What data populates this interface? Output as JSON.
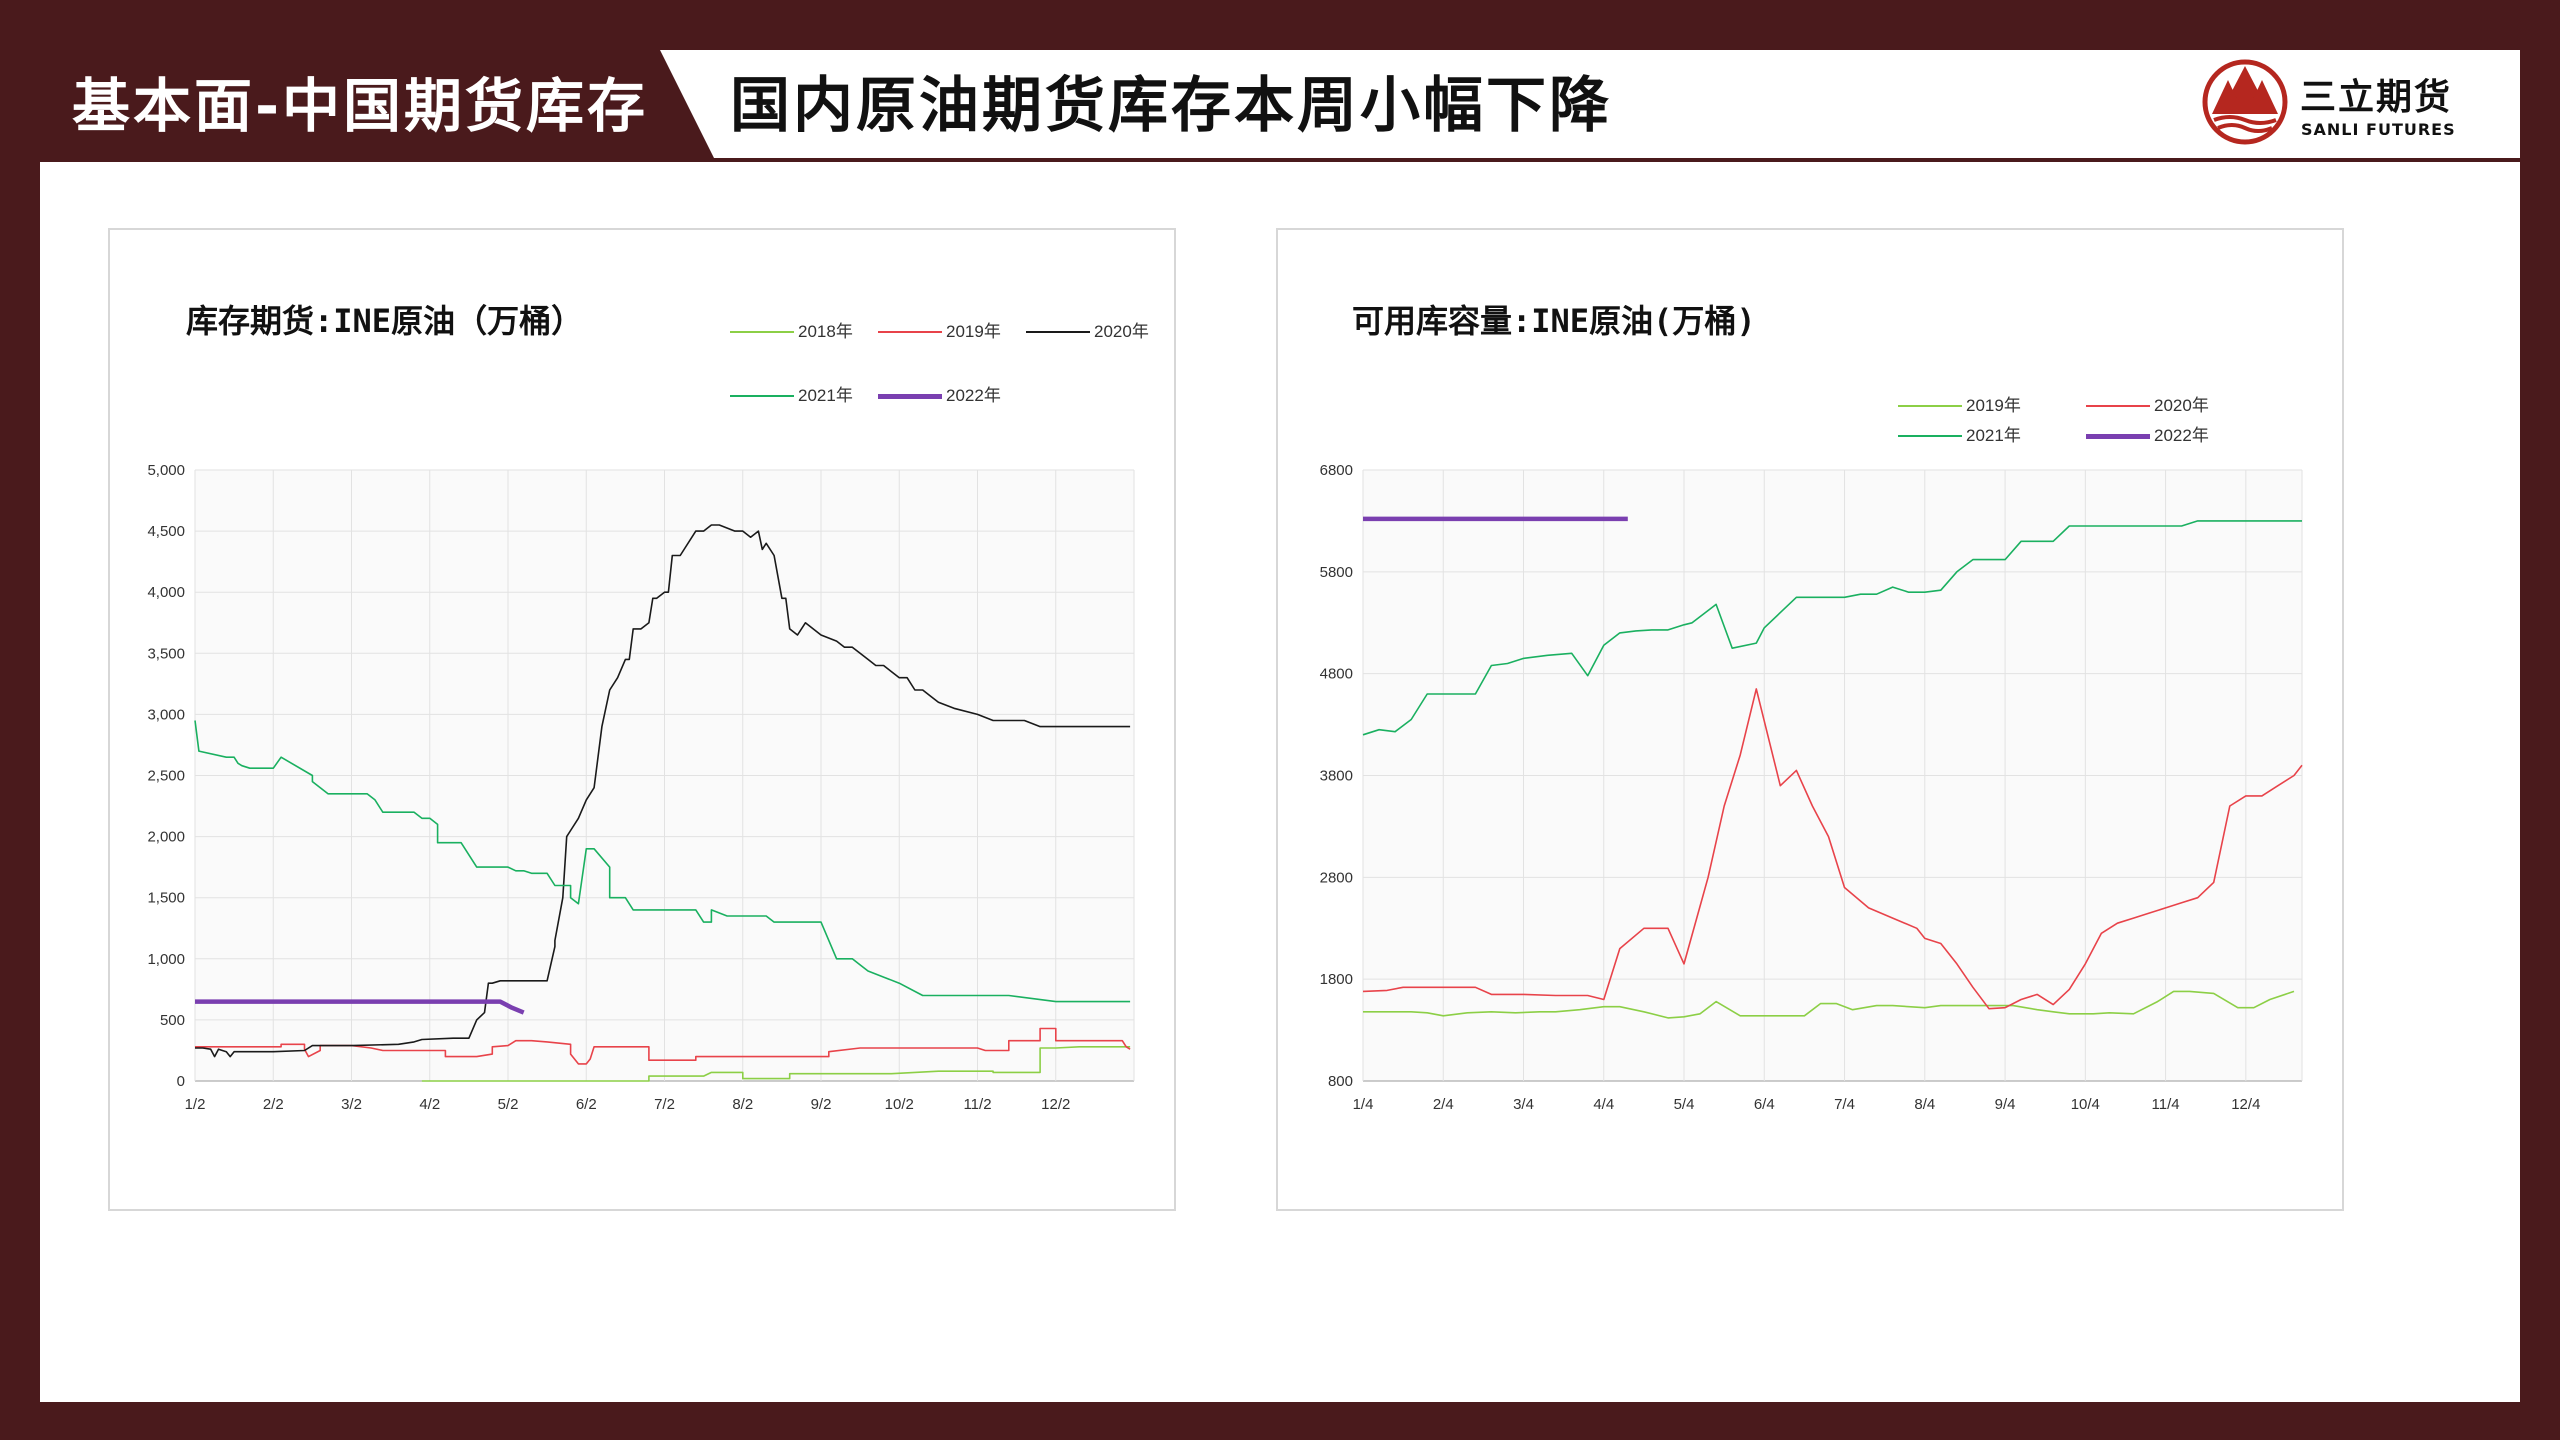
{
  "header": {
    "section_title": "基本面-中国期货库存",
    "page_title": "国内原油期货库存本周小幅下降",
    "logo_name": "三立期货",
    "logo_en": "SANLI FUTURES",
    "brand_color": "#4a1a1c",
    "logo_color": "#b5271f"
  },
  "chart_data": [
    {
      "type": "line",
      "title": "库存期货:INE原油（万桶）",
      "x_ticks": [
        "1/2",
        "2/2",
        "3/2",
        "4/2",
        "5/2",
        "6/2",
        "7/2",
        "8/2",
        "9/2",
        "10/2",
        "11/2",
        "12/2"
      ],
      "y_ticks": [
        "0",
        "500",
        "1,000",
        "1,500",
        "2,000",
        "2,500",
        "3,000",
        "3,500",
        "4,000",
        "4,500",
        "5,000"
      ],
      "ylim": [
        0,
        5000
      ],
      "x_unit": "month index (1/2 = 0)",
      "xlim": [
        0,
        12.0
      ],
      "grid": true,
      "legend_position": "top-right",
      "series": [
        {
          "name": "2018年",
          "color": "#8ccf46",
          "width": 1.6,
          "x": [
            2.9,
            3.4,
            5.8,
            5.8,
            6.5,
            6.6,
            7.0,
            7.0,
            7.6,
            7.6,
            8.1,
            8.9,
            9.5,
            10.2,
            10.2,
            10.8,
            10.8,
            11.0,
            11.3,
            11.95
          ],
          "y": [
            0,
            0,
            0,
            40,
            40,
            70,
            70,
            20,
            20,
            60,
            60,
            60,
            80,
            80,
            70,
            70,
            270,
            270,
            280,
            280
          ]
        },
        {
          "name": "2019年",
          "color": "#e8434a",
          "width": 1.6,
          "x": [
            0,
            0.6,
            0.75,
            1.1,
            1.1,
            1.4,
            1.4,
            1.45,
            1.6,
            1.6,
            2.0,
            2.25,
            2.4,
            3.2,
            3.2,
            3.6,
            3.8,
            3.8,
            4.0,
            4.1,
            4.3,
            4.5,
            4.8,
            4.8,
            4.9,
            5.0,
            5.05,
            5.1,
            5.8,
            5.8,
            6.4,
            6.4,
            8.1,
            8.1,
            8.5,
            9.3,
            9.3,
            10.0,
            10.1,
            10.4,
            10.4,
            10.8,
            10.8,
            11.0,
            11.0,
            11.85,
            11.9,
            11.95
          ],
          "y": [
            280,
            280,
            280,
            280,
            300,
            300,
            260,
            200,
            250,
            290,
            290,
            270,
            250,
            250,
            200,
            200,
            220,
            280,
            290,
            330,
            330,
            320,
            300,
            220,
            140,
            140,
            180,
            280,
            280,
            170,
            170,
            200,
            200,
            240,
            270,
            270,
            270,
            270,
            250,
            250,
            330,
            330,
            430,
            430,
            330,
            330,
            280,
            260
          ]
        },
        {
          "name": "2020年",
          "color": "#1a1a1a",
          "width": 1.6,
          "x": [
            0,
            0.1,
            0.2,
            0.25,
            0.3,
            0.4,
            0.45,
            0.5,
            1.0,
            1.4,
            1.5,
            2.0,
            2.6,
            2.8,
            2.9,
            3.3,
            3.5,
            3.6,
            3.7,
            3.75,
            3.8,
            3.9,
            4.5,
            4.6,
            4.6,
            4.7,
            4.75,
            4.8,
            4.9,
            5.0,
            5.05,
            5.1,
            5.2,
            5.3,
            5.4,
            5.5,
            5.55,
            5.6,
            5.7,
            5.8,
            5.85,
            5.9,
            6.0,
            6.05,
            6.1,
            6.2,
            6.4,
            6.5,
            6.6,
            6.7,
            6.9,
            7.0,
            7.1,
            7.2,
            7.25,
            7.3,
            7.4,
            7.5,
            7.55,
            7.6,
            7.7,
            7.8,
            8.0,
            8.2,
            8.3,
            8.4,
            8.5,
            8.6,
            8.7,
            8.8,
            8.9,
            9.0,
            9.1,
            9.2,
            9.3,
            9.4,
            9.5,
            9.7,
            10.0,
            10.2,
            10.4,
            10.6,
            10.8,
            11.0,
            11.2,
            11.4,
            11.6,
            11.7,
            11.8,
            11.95
          ],
          "y": [
            270,
            270,
            260,
            200,
            260,
            240,
            200,
            240,
            240,
            250,
            290,
            290,
            300,
            320,
            340,
            350,
            350,
            500,
            560,
            800,
            800,
            820,
            820,
            1100,
            1150,
            1500,
            2000,
            2050,
            2150,
            2300,
            2350,
            2400,
            2900,
            3200,
            3300,
            3450,
            3450,
            3700,
            3700,
            3750,
            3950,
            3950,
            4000,
            4000,
            4300,
            4300,
            4500,
            4500,
            4550,
            4550,
            4500,
            4500,
            4450,
            4500,
            4350,
            4400,
            4300,
            3950,
            3950,
            3700,
            3650,
            3750,
            3650,
            3600,
            3550,
            3550,
            3500,
            3450,
            3400,
            3400,
            3350,
            3300,
            3300,
            3200,
            3200,
            3150,
            3100,
            3050,
            3000,
            2950,
            2950,
            2950,
            2900,
            2900,
            2900,
            2900,
            2900,
            2900,
            2900,
            2900
          ]
        },
        {
          "name": "2021年",
          "color": "#1ab060",
          "width": 1.6,
          "x": [
            0,
            0.05,
            0.4,
            0.5,
            0.55,
            0.6,
            0.7,
            1.0,
            1.1,
            1.5,
            1.5,
            1.7,
            2.2,
            2.3,
            2.3,
            2.4,
            2.8,
            2.9,
            3.0,
            3.1,
            3.1,
            3.4,
            3.6,
            3.9,
            4.0,
            4.1,
            4.2,
            4.3,
            4.5,
            4.6,
            4.8,
            4.8,
            4.9,
            5.0,
            5.1,
            5.3,
            5.3,
            5.5,
            5.6,
            5.8,
            6.0,
            6.4,
            6.5,
            6.6,
            6.6,
            6.8,
            6.9,
            7.0,
            7.3,
            7.4,
            7.6,
            8.0,
            8.2,
            8.4,
            8.5,
            8.6,
            8.8,
            9.0,
            9.3,
            9.5,
            9.8,
            10.0,
            10.1,
            10.4,
            11.0,
            11.5,
            11.95
          ],
          "y": [
            2950,
            2700,
            2650,
            2650,
            2600,
            2580,
            2560,
            2560,
            2650,
            2500,
            2450,
            2350,
            2350,
            2300,
            2300,
            2200,
            2200,
            2150,
            2150,
            2100,
            1950,
            1950,
            1750,
            1750,
            1750,
            1720,
            1720,
            1700,
            1700,
            1600,
            1600,
            1500,
            1450,
            1900,
            1900,
            1750,
            1500,
            1500,
            1400,
            1400,
            1400,
            1400,
            1300,
            1300,
            1400,
            1350,
            1350,
            1350,
            1350,
            1300,
            1300,
            1300,
            1000,
            1000,
            950,
            900,
            850,
            800,
            700,
            700,
            700,
            700,
            700,
            700,
            650,
            650,
            650
          ]
        },
        {
          "name": "2022年",
          "color": "#7a3fb0",
          "width": 4.5,
          "x": [
            0,
            0.5,
            1.0,
            1.5,
            2.0,
            2.5,
            3.0,
            3.5,
            3.9,
            4.05,
            4.2
          ],
          "y": [
            650,
            650,
            650,
            650,
            650,
            650,
            650,
            650,
            650,
            600,
            560
          ]
        }
      ]
    },
    {
      "type": "line",
      "title": "可用库容量:INE原油(万桶)",
      "x_ticks": [
        "1/4",
        "2/4",
        "3/4",
        "4/4",
        "5/4",
        "6/4",
        "7/4",
        "8/4",
        "9/4",
        "10/4",
        "11/4",
        "12/4"
      ],
      "y_ticks": [
        "800",
        "1800",
        "2800",
        "3800",
        "4800",
        "5800",
        "6800"
      ],
      "ylim": [
        800,
        6800
      ],
      "x_unit": "month index (1/4 = 0)",
      "xlim": [
        0,
        11.7
      ],
      "grid": true,
      "legend_position": "top-right",
      "series": [
        {
          "name": "2019年",
          "color": "#8ccf46",
          "width": 1.6,
          "x": [
            0,
            0.3,
            0.6,
            0.8,
            1.0,
            1.3,
            1.6,
            1.9,
            2.2,
            2.4,
            2.7,
            3.0,
            3.2,
            3.5,
            3.8,
            4.0,
            4.2,
            4.4,
            4.7,
            4.9,
            5.3,
            5.5,
            5.7,
            5.9,
            6.1,
            6.4,
            6.6,
            7.0,
            7.2,
            7.4,
            7.7,
            7.9,
            8.1,
            8.4,
            8.6,
            8.8,
            9.1,
            9.3,
            9.6,
            9.9,
            10.1,
            10.3,
            10.6,
            10.9,
            11.1,
            11.3,
            11.6
          ],
          "y": [
            1480,
            1480,
            1480,
            1470,
            1440,
            1470,
            1480,
            1470,
            1480,
            1480,
            1500,
            1530,
            1530,
            1480,
            1420,
            1430,
            1460,
            1580,
            1440,
            1440,
            1440,
            1440,
            1560,
            1560,
            1500,
            1540,
            1540,
            1520,
            1540,
            1540,
            1540,
            1540,
            1540,
            1500,
            1480,
            1460,
            1460,
            1470,
            1460,
            1580,
            1680,
            1680,
            1660,
            1520,
            1520,
            1600,
            1680
          ]
        },
        {
          "name": "2020年",
          "color": "#e8434a",
          "width": 1.6,
          "x": [
            0,
            0.3,
            0.5,
            0.8,
            1.0,
            1.4,
            1.6,
            2.0,
            2.4,
            2.8,
            3.0,
            3.2,
            3.5,
            3.6,
            3.8,
            4.0,
            4.3,
            4.5,
            4.7,
            4.9,
            5.2,
            5.4,
            5.6,
            5.8,
            6.0,
            6.3,
            6.6,
            6.9,
            7.0,
            7.2,
            7.4,
            7.6,
            7.8,
            8.0,
            8.2,
            8.4,
            8.6,
            8.8,
            9.0,
            9.2,
            9.4,
            9.6,
            9.8,
            10.0,
            10.2,
            10.4,
            10.6,
            10.8,
            11.0,
            11.2,
            11.4,
            11.6,
            11.7
          ],
          "y": [
            1680,
            1690,
            1720,
            1720,
            1720,
            1720,
            1650,
            1650,
            1640,
            1640,
            1600,
            2100,
            2300,
            2300,
            2300,
            1950,
            2800,
            3500,
            4000,
            4650,
            3700,
            3850,
            3500,
            3200,
            2700,
            2500,
            2400,
            2300,
            2200,
            2150,
            1950,
            1720,
            1510,
            1520,
            1600,
            1650,
            1550,
            1700,
            1950,
            2250,
            2350,
            2400,
            2450,
            2500,
            2550,
            2600,
            2750,
            3500,
            3600,
            3600,
            3700,
            3800,
            3900
          ]
        },
        {
          "name": "2021年",
          "color": "#1ab060",
          "width": 1.6,
          "x": [
            0,
            0.2,
            0.4,
            0.6,
            0.8,
            1.0,
            1.4,
            1.6,
            1.8,
            2.0,
            2.3,
            2.6,
            2.8,
            3.0,
            3.2,
            3.4,
            3.6,
            3.8,
            4.0,
            4.1,
            4.4,
            4.6,
            4.9,
            5.0,
            5.2,
            5.4,
            5.6,
            5.8,
            6.0,
            6.2,
            6.4,
            6.6,
            6.8,
            7.0,
            7.2,
            7.4,
            7.6,
            7.8,
            8.0,
            8.2,
            8.4,
            8.6,
            8.8,
            9.0,
            9.2,
            9.4,
            9.6,
            9.8,
            10.0,
            10.2,
            10.4,
            10.6,
            10.8,
            11.0,
            11.2,
            11.4,
            11.6,
            11.7
          ],
          "y": [
            4200,
            4250,
            4230,
            4350,
            4600,
            4600,
            4600,
            4880,
            4900,
            4950,
            4980,
            5000,
            4780,
            5080,
            5200,
            5220,
            5230,
            5230,
            5280,
            5300,
            5480,
            5050,
            5100,
            5250,
            5400,
            5550,
            5550,
            5550,
            5550,
            5580,
            5580,
            5650,
            5600,
            5600,
            5620,
            5800,
            5920,
            5920,
            5920,
            6100,
            6100,
            6100,
            6250,
            6250,
            6250,
            6250,
            6250,
            6250,
            6250,
            6250,
            6300,
            6300,
            6300,
            6300,
            6300,
            6300,
            6300,
            6300
          ]
        },
        {
          "name": "2022年",
          "color": "#7a3fb0",
          "width": 4.5,
          "x": [
            0,
            0.5,
            1.0,
            1.5,
            2.0,
            2.5,
            3.0,
            3.3
          ],
          "y": [
            6320,
            6320,
            6320,
            6320,
            6320,
            6320,
            6320,
            6320
          ]
        }
      ]
    }
  ]
}
